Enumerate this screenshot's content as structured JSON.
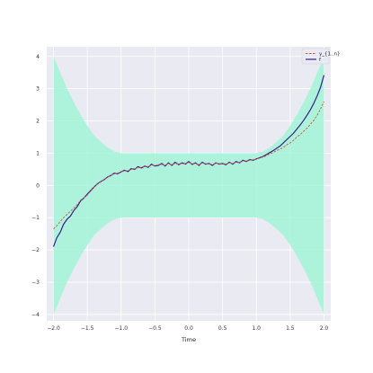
{
  "chart_data": {
    "type": "line",
    "title": "",
    "xlabel": "Time",
    "ylabel": "",
    "xlim": [
      -2.1,
      2.1
    ],
    "ylim": [
      -4.2,
      4.3
    ],
    "xticks": [
      -2.0,
      -1.5,
      -1.0,
      -0.5,
      0.0,
      0.5,
      1.0,
      1.5,
      2.0
    ],
    "yticks": [
      -4,
      -3,
      -2,
      -1,
      0,
      1,
      2,
      3,
      4
    ],
    "grid": true,
    "legend_position": "top-right",
    "band": {
      "x": [
        -2.0,
        -1.9,
        -1.8,
        -1.7,
        -1.6,
        -1.5,
        -1.4,
        -1.3,
        -1.2,
        -1.1,
        -1.0,
        1.0,
        1.1,
        1.2,
        1.3,
        1.4,
        1.5,
        1.6,
        1.7,
        1.8,
        1.9,
        2.0
      ],
      "upper": [
        4.0,
        3.5,
        3.0,
        2.58,
        2.2,
        1.85,
        1.55,
        1.35,
        1.18,
        1.05,
        1.0,
        1.0,
        1.05,
        1.18,
        1.35,
        1.55,
        1.85,
        2.2,
        2.58,
        3.0,
        3.5,
        4.0
      ],
      "lower": [
        -4.0,
        -3.5,
        -3.0,
        -2.58,
        -2.2,
        -1.85,
        -1.55,
        -1.35,
        -1.18,
        -1.05,
        -1.0,
        -1.0,
        -1.05,
        -1.18,
        -1.35,
        -1.55,
        -1.85,
        -2.2,
        -2.58,
        -3.0,
        -3.5,
        -4.0
      ]
    },
    "series": [
      {
        "name": "f",
        "style": "solid",
        "color": "#3b1c8c",
        "x": [
          -2.0,
          -1.95,
          -1.9,
          -1.85,
          -1.8,
          -1.75,
          -1.7,
          -1.65,
          -1.6,
          -1.55,
          -1.5,
          -1.45,
          -1.4,
          -1.35,
          -1.3,
          -1.25,
          -1.2,
          -1.15,
          -1.1,
          -1.05,
          -1.0,
          -0.95,
          -0.9,
          -0.85,
          -0.8,
          -0.75,
          -0.7,
          -0.65,
          -0.6,
          -0.55,
          -0.5,
          -0.45,
          -0.4,
          -0.35,
          -0.3,
          -0.25,
          -0.2,
          -0.15,
          -0.1,
          -0.05,
          0.0,
          0.05,
          0.1,
          0.15,
          0.2,
          0.25,
          0.3,
          0.35,
          0.4,
          0.45,
          0.5,
          0.55,
          0.6,
          0.65,
          0.7,
          0.75,
          0.8,
          0.85,
          0.9,
          0.95,
          1.0,
          1.05,
          1.1,
          1.15,
          1.2,
          1.25,
          1.3,
          1.35,
          1.4,
          1.45,
          1.5,
          1.55,
          1.6,
          1.65,
          1.7,
          1.75,
          1.8,
          1.85,
          1.9,
          1.95,
          2.0
        ],
        "y": [
          -1.9,
          -1.62,
          -1.45,
          -1.2,
          -1.05,
          -0.95,
          -0.78,
          -0.66,
          -0.48,
          -0.39,
          -0.27,
          -0.16,
          -0.05,
          0.05,
          0.12,
          0.18,
          0.26,
          0.31,
          0.38,
          0.36,
          0.42,
          0.47,
          0.43,
          0.52,
          0.5,
          0.58,
          0.54,
          0.6,
          0.56,
          0.66,
          0.6,
          0.62,
          0.68,
          0.6,
          0.7,
          0.62,
          0.72,
          0.64,
          0.7,
          0.66,
          0.74,
          0.65,
          0.7,
          0.62,
          0.72,
          0.66,
          0.68,
          0.62,
          0.7,
          0.66,
          0.68,
          0.64,
          0.72,
          0.66,
          0.74,
          0.7,
          0.78,
          0.74,
          0.8,
          0.78,
          0.82,
          0.86,
          0.9,
          0.96,
          1.02,
          1.08,
          1.15,
          1.22,
          1.32,
          1.42,
          1.52,
          1.62,
          1.75,
          1.88,
          2.02,
          2.18,
          2.35,
          2.55,
          2.78,
          3.05,
          3.42
        ]
      },
      {
        "name": "y_{1..n}",
        "style": "dashed",
        "color": "#d2553a",
        "x": [
          -2.0,
          -1.95,
          -1.9,
          -1.85,
          -1.8,
          -1.75,
          -1.7,
          -1.65,
          -1.6,
          -1.55,
          -1.5,
          -1.45,
          -1.4,
          -1.35,
          -1.3,
          -1.25,
          -1.2,
          -1.15,
          -1.1,
          -1.05,
          -1.0,
          -0.95,
          -0.9,
          -0.85,
          -0.8,
          -0.75,
          -0.7,
          -0.65,
          -0.6,
          -0.55,
          -0.5,
          -0.45,
          -0.4,
          -0.35,
          -0.3,
          -0.25,
          -0.2,
          -0.15,
          -0.1,
          -0.05,
          0.0,
          0.05,
          0.1,
          0.15,
          0.2,
          0.25,
          0.3,
          0.35,
          0.4,
          0.45,
          0.5,
          0.55,
          0.6,
          0.65,
          0.7,
          0.75,
          0.8,
          0.85,
          0.9,
          0.95,
          1.0,
          1.05,
          1.1,
          1.15,
          1.2,
          1.25,
          1.3,
          1.35,
          1.4,
          1.45,
          1.5,
          1.55,
          1.6,
          1.65,
          1.7,
          1.75,
          1.8,
          1.85,
          1.9,
          1.95,
          2.0
        ],
        "y": [
          -1.35,
          -1.25,
          -1.12,
          -1.0,
          -0.9,
          -0.8,
          -0.7,
          -0.6,
          -0.46,
          -0.38,
          -0.3,
          -0.18,
          -0.06,
          0.04,
          0.12,
          0.18,
          0.25,
          0.32,
          0.36,
          0.38,
          0.42,
          0.45,
          0.46,
          0.5,
          0.52,
          0.55,
          0.56,
          0.6,
          0.58,
          0.63,
          0.62,
          0.64,
          0.65,
          0.62,
          0.68,
          0.64,
          0.68,
          0.66,
          0.68,
          0.66,
          0.72,
          0.66,
          0.68,
          0.64,
          0.7,
          0.66,
          0.68,
          0.64,
          0.7,
          0.66,
          0.68,
          0.66,
          0.7,
          0.68,
          0.72,
          0.7,
          0.76,
          0.74,
          0.78,
          0.78,
          0.82,
          0.85,
          0.88,
          0.92,
          0.98,
          1.02,
          1.08,
          1.12,
          1.18,
          1.26,
          1.32,
          1.4,
          1.5,
          1.58,
          1.68,
          1.78,
          1.9,
          2.02,
          2.18,
          2.38,
          2.6
        ]
      }
    ]
  },
  "colors": {
    "plot_background": "#eaeaf2",
    "grid": "#ffffff",
    "band_fill": "#9df5d6",
    "band_fill_opacity": "0.8"
  }
}
